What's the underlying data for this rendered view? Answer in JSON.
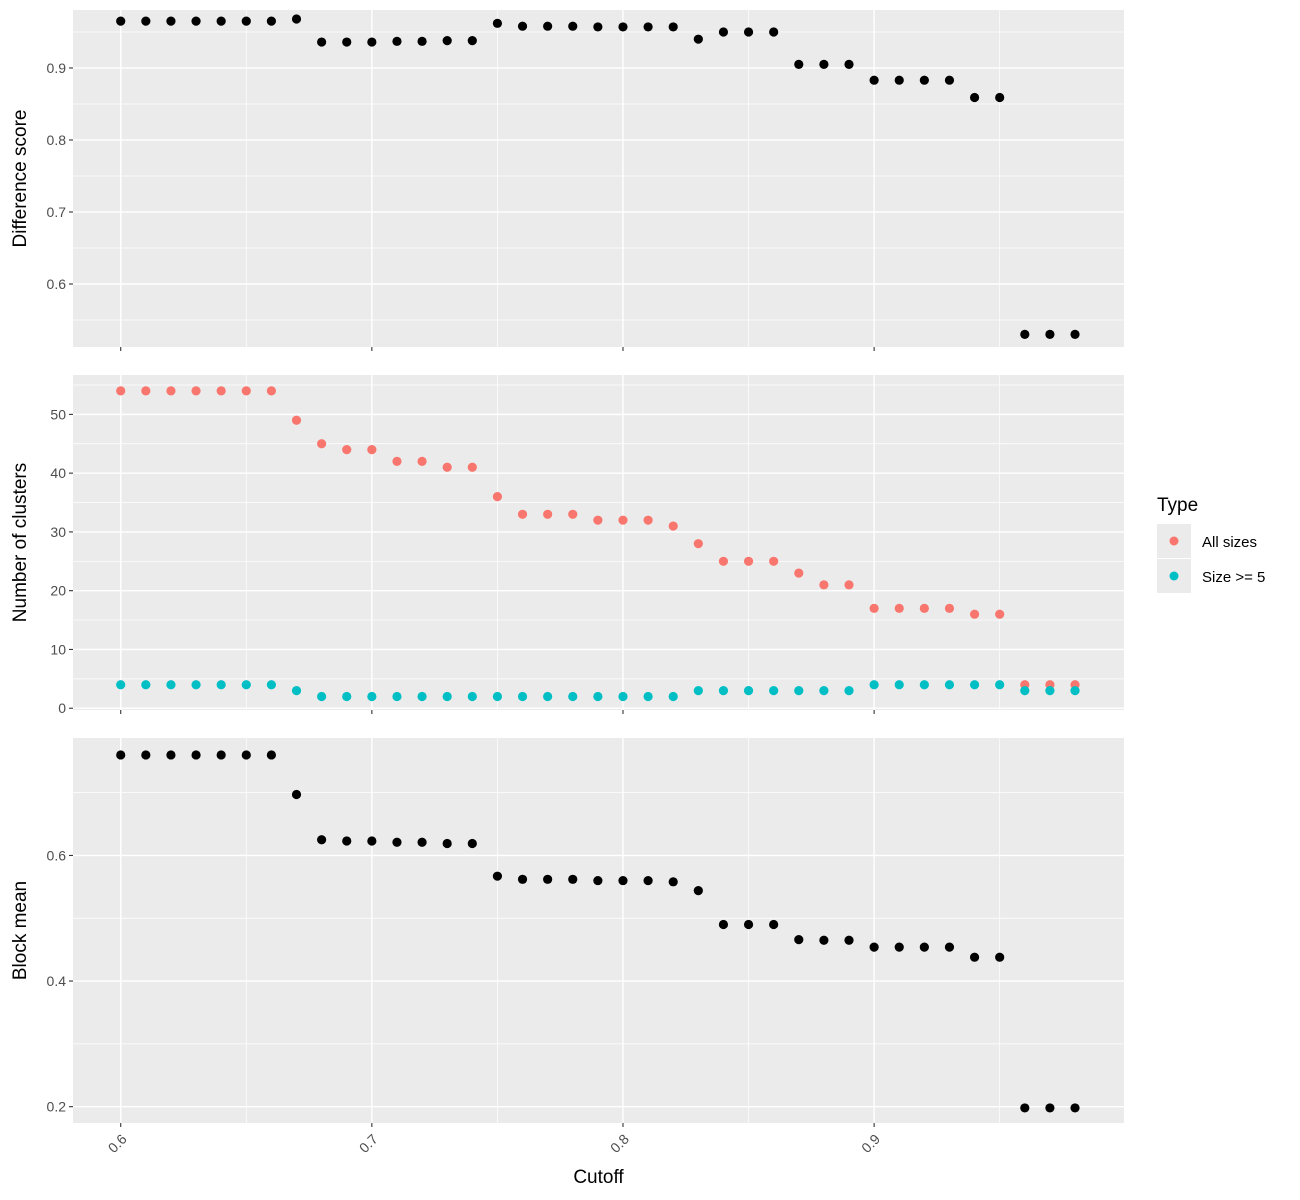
{
  "chart_data": [
    {
      "type": "scatter",
      "panel": "difference",
      "ylabel": "Difference score",
      "xlabel": "",
      "xlim": [
        0.581,
        0.9995
      ],
      "ylim": [
        0.5125,
        0.9805
      ],
      "y_major_ticks": [
        0.6,
        0.7,
        0.8,
        0.9
      ],
      "y_minor_ticks": [
        0.55,
        0.65,
        0.75,
        0.85,
        0.95
      ],
      "series": [
        {
          "color": "#000000",
          "x": [
            0.6,
            0.61,
            0.62,
            0.63,
            0.64,
            0.65,
            0.66,
            0.67,
            0.68,
            0.69,
            0.7,
            0.71,
            0.72,
            0.73,
            0.74,
            0.75,
            0.76,
            0.77,
            0.78,
            0.79,
            0.8,
            0.81,
            0.82,
            0.83,
            0.84,
            0.85,
            0.86,
            0.87,
            0.88,
            0.89,
            0.9,
            0.91,
            0.92,
            0.93,
            0.94,
            0.95,
            0.96,
            0.97,
            0.98
          ],
          "y": [
            0.965,
            0.965,
            0.965,
            0.965,
            0.965,
            0.965,
            0.965,
            0.968,
            0.936,
            0.936,
            0.936,
            0.937,
            0.937,
            0.938,
            0.938,
            0.962,
            0.958,
            0.958,
            0.958,
            0.957,
            0.957,
            0.957,
            0.957,
            0.94,
            0.95,
            0.95,
            0.95,
            0.905,
            0.905,
            0.905,
            0.883,
            0.883,
            0.883,
            0.883,
            0.859,
            0.859,
            0.53,
            0.53,
            0.53
          ]
        }
      ]
    },
    {
      "type": "scatter",
      "panel": "clusters",
      "ylabel": "Number of clusters",
      "xlabel": "",
      "xlim": [
        0.581,
        0.9995
      ],
      "ylim": [
        -0.3,
        56.7
      ],
      "y_major_ticks": [
        0,
        10,
        20,
        30,
        40,
        50
      ],
      "y_minor_ticks": [
        5,
        15,
        25,
        35,
        45,
        55
      ],
      "series": [
        {
          "name": "All sizes",
          "color": "#F8766D",
          "x": [
            0.6,
            0.61,
            0.62,
            0.63,
            0.64,
            0.65,
            0.66,
            0.67,
            0.68,
            0.69,
            0.7,
            0.71,
            0.72,
            0.73,
            0.74,
            0.75,
            0.76,
            0.77,
            0.78,
            0.79,
            0.8,
            0.81,
            0.82,
            0.83,
            0.84,
            0.85,
            0.86,
            0.87,
            0.88,
            0.89,
            0.9,
            0.91,
            0.92,
            0.93,
            0.94,
            0.95,
            0.96,
            0.97,
            0.98
          ],
          "y": [
            54,
            54,
            54,
            54,
            54,
            54,
            54,
            49,
            45,
            44,
            44,
            42,
            42,
            41,
            41,
            36,
            33,
            33,
            33,
            32,
            32,
            32,
            31,
            28,
            25,
            25,
            25,
            23,
            21,
            21,
            17,
            17,
            17,
            17,
            16,
            16,
            4,
            4,
            4
          ]
        },
        {
          "name": "Size >= 5",
          "color": "#00BFC4",
          "x": [
            0.6,
            0.61,
            0.62,
            0.63,
            0.64,
            0.65,
            0.66,
            0.67,
            0.68,
            0.69,
            0.7,
            0.71,
            0.72,
            0.73,
            0.74,
            0.75,
            0.76,
            0.77,
            0.78,
            0.79,
            0.8,
            0.81,
            0.82,
            0.83,
            0.84,
            0.85,
            0.86,
            0.87,
            0.88,
            0.89,
            0.9,
            0.91,
            0.92,
            0.93,
            0.94,
            0.95,
            0.96,
            0.97,
            0.98
          ],
          "y": [
            4,
            4,
            4,
            4,
            4,
            4,
            4,
            3,
            2,
            2,
            2,
            2,
            2,
            2,
            2,
            2,
            2,
            2,
            2,
            2,
            2,
            2,
            2,
            3,
            3,
            3,
            3,
            3,
            3,
            3,
            4,
            4,
            4,
            4,
            4,
            4,
            3,
            3,
            3
          ]
        }
      ]
    },
    {
      "type": "scatter",
      "panel": "block",
      "ylabel": "Block mean",
      "xlabel": "Cutoff",
      "xlim": [
        0.581,
        0.9995
      ],
      "ylim": [
        0.174,
        0.787
      ],
      "x_major_ticks": [
        0.6,
        0.7,
        0.8,
        0.9
      ],
      "x_minor_ticks": [
        0.65,
        0.75,
        0.85,
        0.95
      ],
      "y_major_ticks": [
        0.2,
        0.4,
        0.6
      ],
      "y_minor_ticks": [
        0.3,
        0.5,
        0.7
      ],
      "series": [
        {
          "color": "#000000",
          "x": [
            0.6,
            0.61,
            0.62,
            0.63,
            0.64,
            0.65,
            0.66,
            0.67,
            0.68,
            0.69,
            0.7,
            0.71,
            0.72,
            0.73,
            0.74,
            0.75,
            0.76,
            0.77,
            0.78,
            0.79,
            0.8,
            0.81,
            0.82,
            0.83,
            0.84,
            0.85,
            0.86,
            0.87,
            0.88,
            0.89,
            0.9,
            0.91,
            0.92,
            0.93,
            0.94,
            0.95,
            0.96,
            0.97,
            0.98
          ],
          "y": [
            0.76,
            0.76,
            0.76,
            0.76,
            0.76,
            0.76,
            0.76,
            0.697,
            0.625,
            0.623,
            0.623,
            0.621,
            0.621,
            0.619,
            0.619,
            0.567,
            0.562,
            0.562,
            0.562,
            0.56,
            0.56,
            0.56,
            0.558,
            0.544,
            0.49,
            0.49,
            0.49,
            0.466,
            0.465,
            0.465,
            0.454,
            0.454,
            0.454,
            0.454,
            0.438,
            0.438,
            0.198,
            0.198,
            0.198
          ]
        }
      ]
    }
  ],
  "legend": {
    "title": "Type",
    "position": "right",
    "items": [
      {
        "label": "All sizes",
        "color": "#F8766D"
      },
      {
        "label": "Size >= 5",
        "color": "#00BFC4"
      }
    ]
  }
}
